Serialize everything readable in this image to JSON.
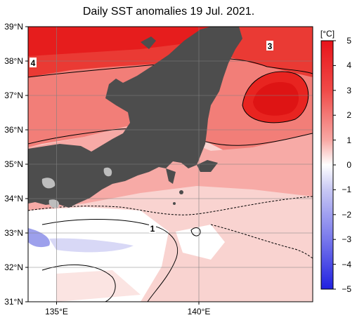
{
  "title": "Daily SST anomalies 19 Jul. 2021.",
  "map": {
    "lat_labels": [
      "39°N",
      "38°N",
      "37°N",
      "36°N",
      "35°N",
      "34°N",
      "33°N",
      "32°N",
      "31°N"
    ],
    "lon_labels": [
      "135°E",
      "140°E"
    ],
    "lat_range": [
      31,
      39
    ],
    "lon_range": [
      134,
      144
    ],
    "contour_labels": [
      {
        "text": "4",
        "lon": 134.1,
        "lat": 37.95
      },
      {
        "text": "3",
        "lon": 141.05,
        "lat": 38.5
      },
      {
        "text": "1",
        "lon": 138.45,
        "lat": 33.15
      }
    ]
  },
  "colorbar": {
    "unit": "[°C]",
    "ticks": [
      "5",
      "4",
      "3",
      "2",
      "1",
      "0",
      "−1",
      "−2",
      "−3",
      "−4",
      "−5"
    ],
    "min": -5,
    "max": 5
  },
  "colors": {
    "land": "#4d4d4d",
    "warm_max": "#e8141a",
    "cold_max": "#2020e0",
    "neutral": "#ffffff"
  }
}
